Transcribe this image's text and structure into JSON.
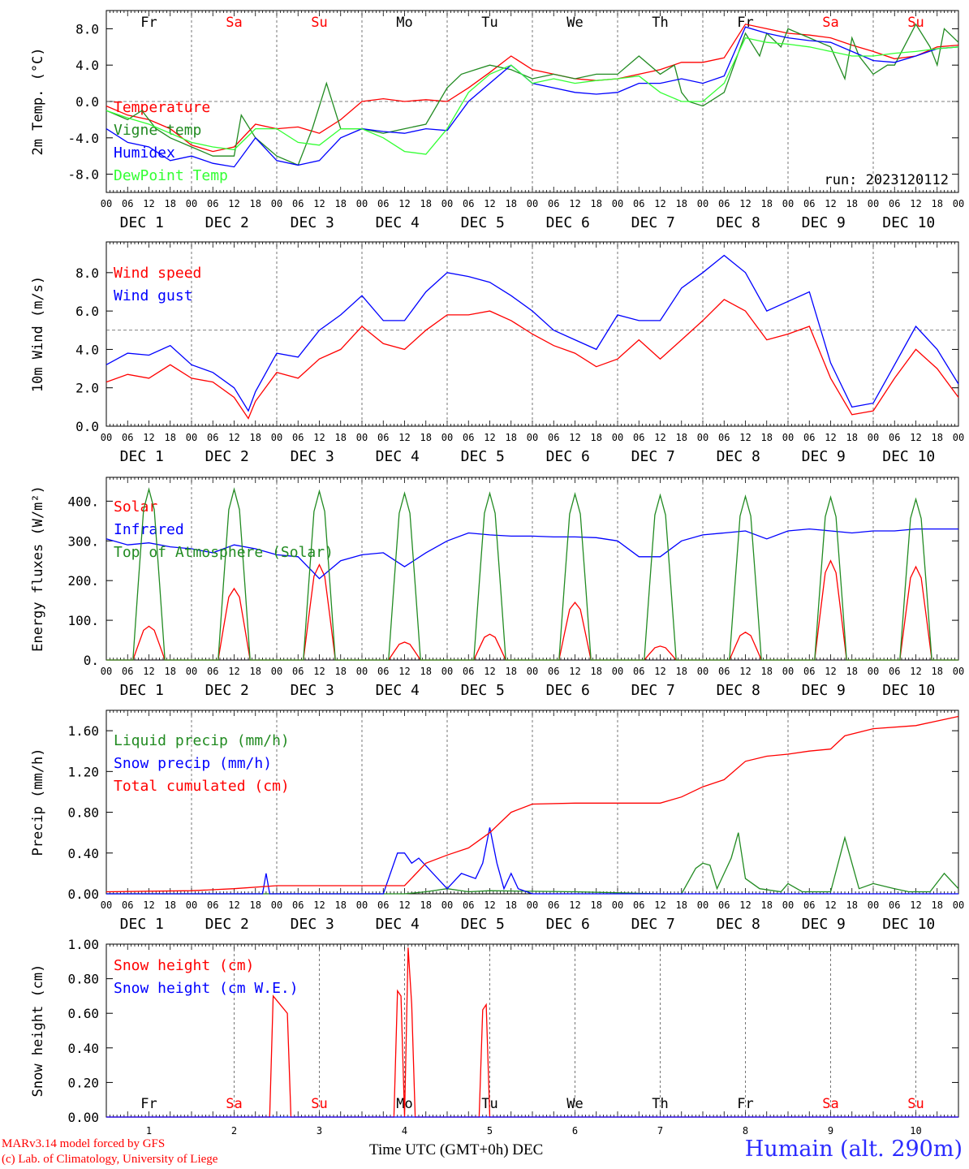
{
  "colors": {
    "red": "#ff0000",
    "green": "#228b22",
    "blue": "#0000ff",
    "lime": "#33ff33",
    "dark_green": "#1a8a1a",
    "ref_line": "#555555"
  },
  "days": {
    "weekdays": [
      "Fr",
      "Sa",
      "Su",
      "Mo",
      "Tu",
      "We",
      "Th",
      "Fr",
      "Sa",
      "Su"
    ],
    "weekend_flags": [
      false,
      true,
      true,
      false,
      false,
      false,
      false,
      false,
      true,
      true
    ],
    "dates": [
      "DEC  1",
      "DEC  2",
      "DEC  3",
      "DEC  4",
      "DEC  5",
      "DEC  6",
      "DEC  7",
      "DEC  8",
      "DEC  9",
      "DEC 10"
    ],
    "bottom_dates": [
      "1",
      "2",
      "3",
      "4",
      "5",
      "6",
      "7",
      "8",
      "9",
      "10"
    ],
    "hours": [
      "00",
      "06",
      "12",
      "18"
    ],
    "end_hour": "00"
  },
  "footer": {
    "credit_line1": "MARv3.14 model forced by GFS",
    "credit_line2": "(c) Lab. of Climatology, University of Liege",
    "xlabel": "Time UTC (GMT+0h)",
    "xlabel_month": "DEC",
    "station": "Humain (alt. 290m)"
  },
  "chart_data": [
    {
      "id": "temp",
      "type": "line",
      "ylabel": "2m Temp. (°C)",
      "ylim": [
        -10,
        10
      ],
      "yticks": [
        -8,
        -4,
        0,
        4,
        8
      ],
      "ytick_labels": [
        "-8.0",
        "-4.0",
        "0.0",
        "4.0",
        "8.0"
      ],
      "ref_line": 0,
      "run_label": "run: 2023120112",
      "x_unit": "hours since DEC 1 00 UTC",
      "series": [
        {
          "name": "Temperature",
          "color": "red",
          "x": [
            0,
            6,
            12,
            18,
            24,
            30,
            36,
            42,
            48,
            54,
            60,
            66,
            72,
            78,
            84,
            90,
            96,
            102,
            108,
            114,
            120,
            126,
            132,
            138,
            144,
            150,
            156,
            162,
            168,
            174,
            180,
            186,
            192,
            198,
            204,
            210,
            216,
            222,
            228,
            234,
            240
          ],
          "y": [
            -0.5,
            -1.5,
            -2,
            -3,
            -4.8,
            -5.5,
            -5,
            -2.5,
            -3,
            -2.8,
            -3.5,
            -2,
            0,
            0.3,
            0,
            0.2,
            0,
            1.5,
            3.2,
            5,
            3.5,
            3,
            2.5,
            2.3,
            2.5,
            3,
            3.5,
            4.3,
            4.3,
            4.8,
            8.5,
            8,
            7.5,
            7.3,
            7,
            6.2,
            5.5,
            4.7,
            5,
            6,
            6.2
          ]
        },
        {
          "name": "Vigne temp",
          "color": "green",
          "x": [
            0,
            6,
            10,
            14,
            18,
            24,
            30,
            36,
            38,
            42,
            48,
            54,
            58,
            62,
            66,
            72,
            78,
            84,
            90,
            96,
            100,
            104,
            108,
            114,
            120,
            126,
            132,
            138,
            144,
            150,
            156,
            160,
            162,
            164,
            168,
            174,
            180,
            184,
            186,
            190,
            192,
            198,
            204,
            208,
            210,
            212,
            216,
            220,
            222,
            228,
            232,
            234,
            236,
            240
          ],
          "y": [
            -1,
            -2,
            -1,
            -3,
            -4,
            -5,
            -6,
            -6,
            -1.5,
            -4,
            -6,
            -7,
            -3,
            2,
            -3,
            -3,
            -3.5,
            -3,
            -2.5,
            1.5,
            3,
            3.5,
            4,
            3.5,
            2.5,
            3,
            2.5,
            3,
            3,
            5,
            3,
            4,
            1,
            0,
            -0.5,
            1,
            7.5,
            5,
            7.5,
            6,
            8,
            7,
            6,
            2.5,
            7,
            5,
            3,
            4,
            4,
            8.5,
            6,
            4,
            8,
            6.5
          ]
        },
        {
          "name": "Humidex",
          "color": "blue",
          "x": [
            0,
            6,
            12,
            18,
            24,
            30,
            36,
            42,
            48,
            54,
            60,
            66,
            72,
            78,
            84,
            90,
            96,
            102,
            108,
            114,
            120,
            126,
            132,
            138,
            144,
            150,
            156,
            162,
            168,
            174,
            180,
            186,
            192,
            198,
            204,
            210,
            216,
            222,
            228,
            234,
            240
          ],
          "y": [
            -3,
            -4.5,
            -5,
            -6.5,
            -6,
            -6.8,
            -7.2,
            -4,
            -6.5,
            -7,
            -6.5,
            -4,
            -3,
            -3.3,
            -3.5,
            -3,
            -3.2,
            0,
            2,
            4,
            2,
            1.5,
            1,
            0.8,
            1,
            2,
            2,
            2.5,
            2,
            2.8,
            8.2,
            7.5,
            7,
            6.7,
            6.5,
            5.5,
            4.5,
            4.3,
            5,
            5.8,
            6
          ]
        },
        {
          "name": "DewPoint Temp",
          "color": "lime",
          "x": [
            0,
            6,
            12,
            18,
            24,
            30,
            36,
            42,
            48,
            54,
            60,
            66,
            72,
            78,
            84,
            90,
            96,
            102,
            108,
            114,
            120,
            126,
            132,
            138,
            144,
            150,
            156,
            162,
            168,
            174,
            180,
            186,
            192,
            198,
            204,
            210,
            216,
            222,
            228,
            234,
            240
          ],
          "y": [
            -1,
            -1.8,
            -2.5,
            -3.5,
            -4.5,
            -5,
            -5.3,
            -3,
            -3,
            -4.5,
            -4.8,
            -3,
            -3,
            -4,
            -5.5,
            -5.8,
            -3,
            1,
            3,
            4,
            2,
            2.5,
            2,
            2.3,
            2.5,
            2.8,
            1,
            0,
            0,
            2,
            7,
            6.5,
            6.3,
            6,
            5.5,
            5,
            5,
            5.3,
            5.5,
            5.8,
            6
          ]
        }
      ]
    },
    {
      "id": "wind",
      "type": "line",
      "ylabel": "10m Wind (m/s)",
      "ylim": [
        0,
        9.6
      ],
      "yticks": [
        0,
        2,
        4,
        6,
        8
      ],
      "ytick_labels": [
        "0.0",
        "2.0",
        "4.0",
        "6.0",
        "8.0"
      ],
      "ref_line": 5,
      "series": [
        {
          "name": "Wind speed",
          "color": "red",
          "x": [
            0,
            6,
            12,
            18,
            24,
            30,
            36,
            40,
            42,
            48,
            54,
            60,
            66,
            72,
            78,
            84,
            90,
            96,
            102,
            108,
            114,
            120,
            126,
            132,
            138,
            144,
            150,
            156,
            162,
            168,
            174,
            180,
            186,
            192,
            198,
            204,
            210,
            216,
            222,
            228,
            234,
            240
          ],
          "y": [
            2.3,
            2.7,
            2.5,
            3.2,
            2.5,
            2.3,
            1.5,
            0.4,
            1.3,
            2.8,
            2.5,
            3.5,
            4,
            5.2,
            4.3,
            4,
            5,
            5.8,
            5.8,
            6,
            5.5,
            4.8,
            4.2,
            3.8,
            3.1,
            3.5,
            4.5,
            3.5,
            4.5,
            5.5,
            6.6,
            6,
            4.5,
            4.8,
            5.2,
            2.5,
            0.6,
            0.8,
            2.5,
            4,
            3,
            1.5
          ]
        },
        {
          "name": "Wind gust",
          "color": "blue",
          "x": [
            0,
            6,
            12,
            18,
            24,
            30,
            36,
            40,
            42,
            48,
            54,
            60,
            66,
            72,
            78,
            84,
            90,
            96,
            102,
            108,
            114,
            120,
            126,
            132,
            138,
            144,
            150,
            156,
            162,
            168,
            174,
            180,
            186,
            192,
            198,
            204,
            210,
            216,
            222,
            228,
            234,
            240
          ],
          "y": [
            3.2,
            3.8,
            3.7,
            4.2,
            3.2,
            2.8,
            2,
            0.8,
            1.8,
            3.8,
            3.6,
            5,
            5.8,
            6.8,
            5.5,
            5.5,
            7,
            8,
            7.8,
            7.5,
            6.8,
            6,
            5,
            4.5,
            4,
            5.8,
            5.5,
            5.5,
            7.2,
            8,
            8.9,
            8,
            6,
            6.5,
            7,
            3.3,
            1,
            1.2,
            3.2,
            5.2,
            4,
            2.2
          ]
        }
      ]
    },
    {
      "id": "flux",
      "type": "line",
      "ylabel": "Energy fluxes (W/m²)",
      "ylim": [
        0,
        460
      ],
      "yticks": [
        0,
        100,
        200,
        300,
        400
      ],
      "ytick_labels": [
        "0.",
        "100.",
        "200.",
        "300.",
        "400."
      ],
      "series": [
        {
          "name": "Solar",
          "color": "red",
          "day_peaks": [
            85,
            180,
            240,
            45,
            65,
            145,
            35,
            70,
            250,
            235
          ]
        },
        {
          "name": "Infrared",
          "color": "blue",
          "x": [
            0,
            6,
            12,
            18,
            24,
            30,
            36,
            42,
            48,
            54,
            60,
            66,
            72,
            78,
            84,
            90,
            96,
            102,
            108,
            114,
            120,
            126,
            132,
            138,
            144,
            150,
            156,
            162,
            168,
            174,
            180,
            186,
            192,
            198,
            204,
            210,
            216,
            222,
            228,
            234,
            240
          ],
          "y": [
            305,
            290,
            295,
            285,
            280,
            270,
            290,
            280,
            265,
            260,
            205,
            250,
            265,
            270,
            235,
            270,
            300,
            320,
            315,
            312,
            312,
            310,
            310,
            308,
            300,
            260,
            260,
            300,
            315,
            320,
            325,
            305,
            325,
            330,
            325,
            320,
            325,
            325,
            330,
            330,
            330
          ]
        },
        {
          "name": "Top of Atmosphere (Solar)",
          "color": "green",
          "day_peaks": [
            430,
            430,
            425,
            420,
            420,
            418,
            415,
            412,
            410,
            405
          ]
        }
      ]
    },
    {
      "id": "precip",
      "type": "line",
      "ylabel": "Precip (mm/h)",
      "ylim": [
        0,
        1.8
      ],
      "yticks": [
        0,
        0.4,
        0.8,
        1.2,
        1.6
      ],
      "ytick_labels": [
        "0.00",
        "0.40",
        "0.80",
        "1.20",
        "1.60"
      ],
      "series": [
        {
          "name": "Liquid precip (mm/h)",
          "color": "green",
          "x": [
            0,
            72,
            84,
            90,
            96,
            102,
            108,
            132,
            156,
            162,
            166,
            168,
            170,
            172,
            176,
            178,
            180,
            184,
            190,
            192,
            196,
            204,
            208,
            212,
            216,
            222,
            226,
            232,
            236,
            240
          ],
          "y": [
            0,
            0,
            0,
            0.02,
            0.05,
            0.02,
            0.03,
            0.02,
            0,
            0,
            0.25,
            0.3,
            0.28,
            0.05,
            0.35,
            0.6,
            0.15,
            0.05,
            0.02,
            0.1,
            0.02,
            0.02,
            0.55,
            0.05,
            0.1,
            0.05,
            0.02,
            0.02,
            0.2,
            0.05
          ]
        },
        {
          "name": "Snow precip (mm/h)",
          "color": "blue",
          "x": [
            0,
            40,
            44,
            45,
            46,
            48,
            60,
            78,
            82,
            84,
            86,
            88,
            96,
            100,
            104,
            106,
            108,
            110,
            112,
            114,
            116,
            120,
            132,
            240
          ],
          "y": [
            0,
            0,
            0,
            0.2,
            0,
            0,
            0,
            0,
            0.4,
            0.4,
            0.3,
            0.35,
            0.05,
            0.2,
            0.15,
            0.3,
            0.65,
            0.3,
            0.05,
            0.2,
            0.05,
            0,
            0,
            0
          ]
        },
        {
          "name": "Total cumulated (cm)",
          "color": "red",
          "x": [
            0,
            24,
            36,
            48,
            72,
            84,
            90,
            96,
            102,
            108,
            114,
            120,
            132,
            144,
            156,
            162,
            168,
            174,
            180,
            186,
            192,
            198,
            204,
            208,
            216,
            228,
            240
          ],
          "y": [
            0.02,
            0.03,
            0.05,
            0.08,
            0.08,
            0.08,
            0.3,
            0.38,
            0.45,
            0.6,
            0.8,
            0.88,
            0.89,
            0.89,
            0.89,
            0.95,
            1.05,
            1.12,
            1.3,
            1.35,
            1.37,
            1.4,
            1.42,
            1.55,
            1.62,
            1.65,
            1.74
          ]
        }
      ]
    },
    {
      "id": "snow",
      "type": "line",
      "ylabel": "Snow height (cm)",
      "ylim": [
        0,
        1.0
      ],
      "yticks": [
        0,
        0.2,
        0.4,
        0.6,
        0.8,
        1.0
      ],
      "ytick_labels": [
        "0.00",
        "0.20",
        "0.40",
        "0.60",
        "0.80",
        "1.00"
      ],
      "series": [
        {
          "name": "Snow height (cm)",
          "color": "red",
          "x": [
            0,
            46,
            47,
            51,
            52,
            81,
            82,
            83,
            84,
            85,
            86,
            87,
            105,
            106,
            107,
            108,
            240
          ],
          "y": [
            0,
            0,
            0.7,
            0.6,
            0,
            0,
            0.73,
            0.7,
            0,
            0.98,
            0.65,
            0,
            0,
            0.62,
            0.65,
            0,
            0
          ]
        },
        {
          "name": "Snow height (cm W.E.)",
          "color": "blue",
          "x": [
            0,
            240
          ],
          "y": [
            0,
            0
          ]
        }
      ]
    }
  ]
}
